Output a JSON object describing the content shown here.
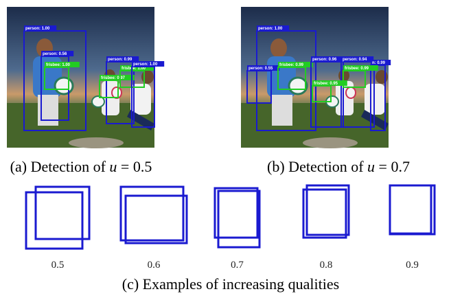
{
  "figure": {
    "panel_a": {
      "caption": {
        "prefix": "(a) Detection of",
        "var": "u",
        "rest": "= 0.5"
      },
      "detections": [
        "person: 1.00",
        "person: 0.56",
        "frisbee: 1.00",
        "person: 0.99",
        "frisbee: 0.97",
        "frisbee: 1.00",
        "person: 1.00"
      ]
    },
    "panel_b": {
      "caption": {
        "prefix": "(b) Detection of",
        "var": "u",
        "rest": "= 0.7"
      },
      "detections": [
        "person: 1.00",
        "person: 0.55",
        "frisbee: 0.99",
        "person: 0.96",
        "person: 0.94",
        "n: 0.99",
        "frisbee: 0.95",
        "frisbee: 0.99"
      ]
    },
    "panel_c": {
      "caption": "(c) Examples of increasing qualities",
      "qualities": [
        0.5,
        0.6,
        0.7,
        0.8,
        0.9
      ]
    }
  }
}
